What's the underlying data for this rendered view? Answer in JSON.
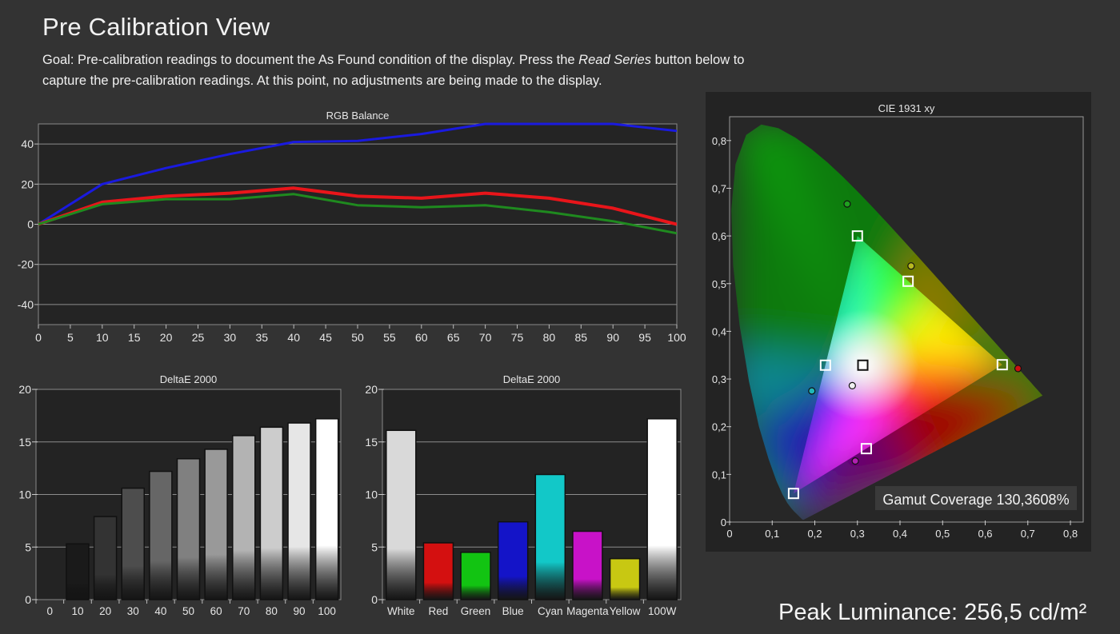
{
  "page": {
    "title": "Pre Calibration View",
    "goal_prefix": "Goal: Pre-calibration readings to document the As Found condition of the display. Press the ",
    "goal_emphasis": "Read Series",
    "goal_suffix": " button below to capture the pre-calibration readings. At this point, no adjustments are being made to the display.",
    "peak_luminance": "Peak Luminance: 256,5 cd/m²"
  },
  "colors": {
    "background": "#333333",
    "plot_bg": "#232323",
    "red": "#e8151a",
    "green": "#1f8a1f",
    "blue": "#1a1adf"
  },
  "chart_data": [
    {
      "id": "rgb_balance",
      "type": "line",
      "title": "RGB Balance",
      "x": [
        0,
        10,
        20,
        30,
        40,
        50,
        60,
        70,
        80,
        90,
        100
      ],
      "x_ticks": [
        "0",
        "5",
        "10",
        "15",
        "20",
        "25",
        "30",
        "35",
        "40",
        "45",
        "50",
        "55",
        "60",
        "65",
        "70",
        "75",
        "80",
        "85",
        "90",
        "95",
        "100"
      ],
      "y_ticks": [
        "40",
        "20",
        "0",
        "-20",
        "-40"
      ],
      "ylim": [
        -50,
        50
      ],
      "xlim": [
        0,
        100
      ],
      "grid": true,
      "series": [
        {
          "color": "#1a1adf",
          "values": [
            0,
            20,
            28,
            35,
            41,
            41.5,
            45,
            50,
            50,
            50,
            46.5
          ]
        },
        {
          "color": "#e8151a",
          "values": [
            0,
            11,
            14,
            15.5,
            18,
            14,
            13,
            15.5,
            13,
            8,
            0
          ]
        },
        {
          "color": "#1f8a1f",
          "values": [
            0,
            10,
            12.5,
            12.5,
            15,
            9.5,
            8.5,
            9.5,
            6,
            1.5,
            -4.5
          ]
        }
      ]
    },
    {
      "id": "deltae_greyscale",
      "type": "bar",
      "title": "DeltaE 2000",
      "categories": [
        "0",
        "10",
        "20",
        "30",
        "40",
        "50",
        "60",
        "70",
        "80",
        "90",
        "100"
      ],
      "values": [
        0,
        5.3,
        7.9,
        10.6,
        12.2,
        13.4,
        14.3,
        15.6,
        16.4,
        16.8,
        17.2
      ],
      "bar_colors": [
        "#000000",
        "#1a1a1a",
        "#333333",
        "#4d4d4d",
        "#666666",
        "#808080",
        "#999999",
        "#b3b3b3",
        "#cccccc",
        "#e6e6e6",
        "#ffffff"
      ],
      "y_ticks": [
        "20",
        "15",
        "10",
        "5",
        "0"
      ],
      "ylim": [
        0,
        20
      ]
    },
    {
      "id": "deltae_colors",
      "type": "bar",
      "title": "DeltaE 2000",
      "categories": [
        "White",
        "Red",
        "Green",
        "Blue",
        "Cyan",
        "Magenta",
        "Yellow",
        "100W"
      ],
      "values": [
        16.1,
        5.4,
        4.5,
        7.4,
        11.9,
        6.5,
        3.9,
        17.2
      ],
      "bar_colors": [
        "#d9d9d9",
        "#d41010",
        "#12c412",
        "#1414c8",
        "#12c8c8",
        "#c812c8",
        "#c8c812",
        "#ffffff"
      ],
      "y_ticks": [
        "20",
        "15",
        "10",
        "5",
        "0"
      ],
      "ylim": [
        0,
        20
      ]
    },
    {
      "id": "cie_1931",
      "type": "scatter",
      "title": "CIE 1931 xy",
      "x_ticks": [
        "0",
        "0,1",
        "0,2",
        "0,3",
        "0,4",
        "0,5",
        "0,6",
        "0,7",
        "0,8"
      ],
      "y_ticks": [
        "0,8",
        "0,7",
        "0,6",
        "0,5",
        "0,4",
        "0,3",
        "0,2",
        "0,1",
        "0"
      ],
      "xlim": [
        0,
        0.83
      ],
      "ylim": [
        0,
        0.85
      ],
      "target_gamut": [
        [
          0.64,
          0.33
        ],
        [
          0.3,
          0.6
        ],
        [
          0.15,
          0.06
        ]
      ],
      "targets": [
        {
          "name": "red",
          "x": 0.64,
          "y": 0.33
        },
        {
          "name": "green",
          "x": 0.3,
          "y": 0.6
        },
        {
          "name": "blue",
          "x": 0.15,
          "y": 0.06
        },
        {
          "name": "cyan",
          "x": 0.225,
          "y": 0.329
        },
        {
          "name": "magenta",
          "x": 0.321,
          "y": 0.154
        },
        {
          "name": "yellow",
          "x": 0.419,
          "y": 0.505
        },
        {
          "name": "white",
          "x": 0.3127,
          "y": 0.329
        }
      ],
      "measured": [
        {
          "name": "red",
          "x": 0.677,
          "y": 0.322,
          "color": "#cc1010"
        },
        {
          "name": "green",
          "x": 0.276,
          "y": 0.667,
          "color": "#1fa01f"
        },
        {
          "name": "yellow",
          "x": 0.426,
          "y": 0.537,
          "color": "#b8b820"
        },
        {
          "name": "cyan",
          "x": 0.193,
          "y": 0.275,
          "color": "#20b8b8"
        },
        {
          "name": "white",
          "x": 0.288,
          "y": 0.286,
          "color": "#f0f0f0"
        },
        {
          "name": "magenta",
          "x": 0.295,
          "y": 0.128,
          "color": "#b020b0"
        }
      ],
      "gamut_coverage": "Gamut Coverage 130,3608%"
    }
  ]
}
